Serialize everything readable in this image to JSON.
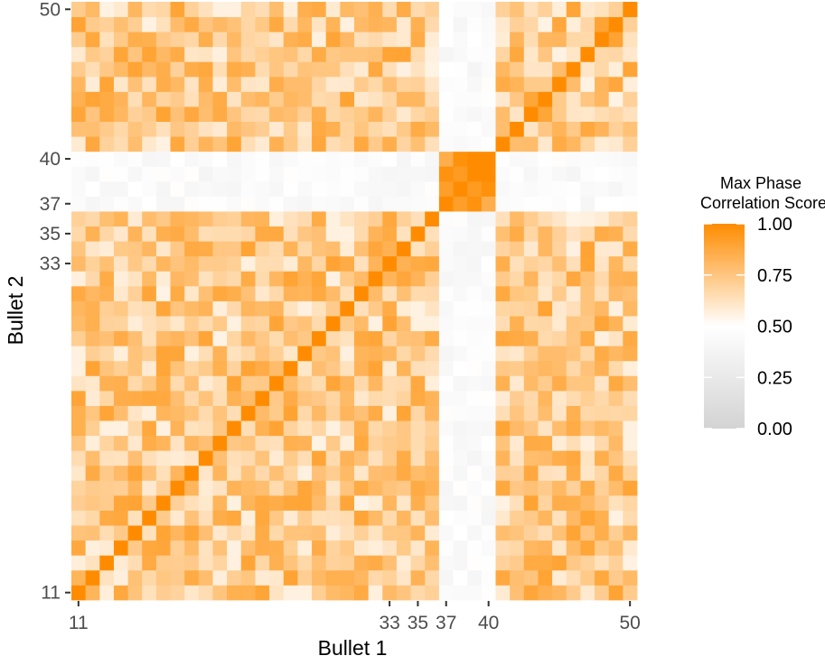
{
  "chart_data": {
    "type": "heatmap",
    "xlabel": "Bullet 1",
    "ylabel": "Bullet 2",
    "x_range": [
      11,
      50
    ],
    "y_range": [
      11,
      50
    ],
    "x_ticks": [
      11,
      33,
      35,
      37,
      40,
      50
    ],
    "y_ticks": [
      11,
      33,
      35,
      37,
      40,
      50
    ],
    "diagonal_value": 1.0,
    "low_score_band": {
      "bullet1_range": [
        37,
        40
      ],
      "bullet2_range": [
        37,
        40
      ],
      "approx_value": 0.45,
      "exception": "cells where both bullets are in 37-40 are high (~0.85-1.0)"
    },
    "typical_off_diagonal_range": [
      0.55,
      0.9
    ],
    "legend": {
      "title_line1": "Max Phase",
      "title_line2": "Correlation Score",
      "labels": [
        "1.00",
        "0.75",
        "0.50",
        "0.25",
        "0.00"
      ],
      "values": [
        1.0,
        0.75,
        0.5,
        0.25,
        0.0
      ],
      "color_low": "#d3d3d3",
      "color_mid": "#ffffff",
      "color_high": "#ff8c00",
      "midpoint": 0.5
    },
    "grid": false,
    "legend_position": "right"
  }
}
